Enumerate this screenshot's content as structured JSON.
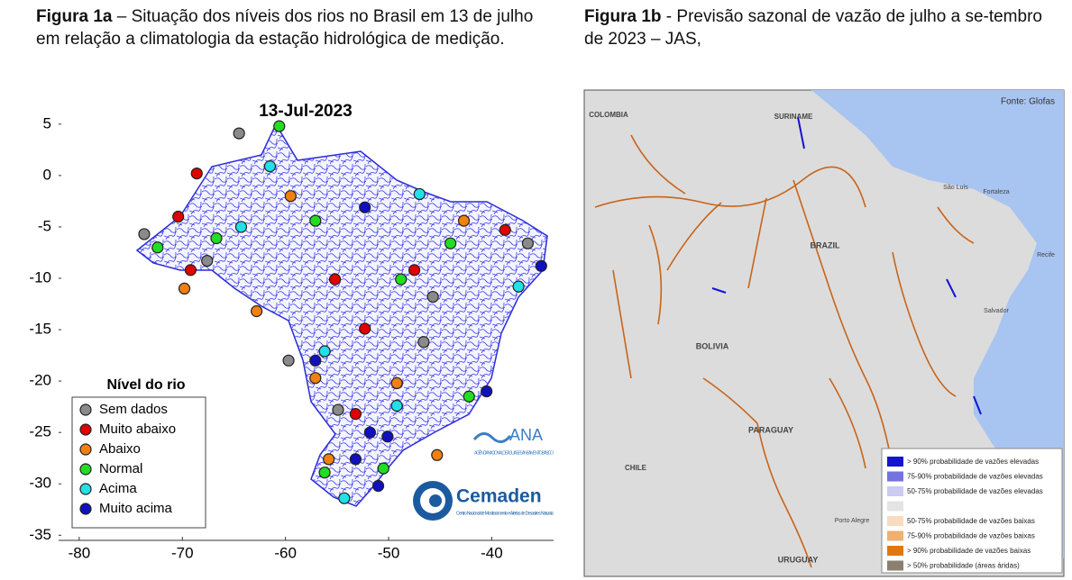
{
  "captions": [
    {
      "label": "Figura 1a",
      "text": " – Situação dos níveis dos rios no Brasil em 13 de julho em relação a climatologia da estação hidrológica de medição."
    },
    {
      "label": "Figura 1b",
      "text": " -  Previsão sazonal de vazão de julho a se-tembro de 2023 – JAS,"
    }
  ],
  "chart_data": {
    "type": "scatter",
    "title": "13-Jul-2023",
    "legend_title": "Nível do rio",
    "xlim": [
      -82,
      -34
    ],
    "ylim": [
      -35.5,
      7
    ],
    "xticks": [
      -80,
      -70,
      -60,
      -50,
      -40
    ],
    "yticks": [
      5,
      0,
      -5,
      -10,
      -15,
      -20,
      -25,
      -30,
      -35
    ],
    "series": [
      {
        "name": "Sem dados",
        "color": "#8a8a8a",
        "x": [
          -64.5,
          -73.7,
          -67.6,
          -59.7,
          -46.6,
          -36.5,
          -45.7,
          -54.9
        ],
        "y": [
          4.1,
          -5.7,
          -8.3,
          -18,
          -16.2,
          -6.6,
          -11.8,
          -22.8
        ]
      },
      {
        "name": "Muito abaixo",
        "color": "#e00000",
        "x": [
          -68.6,
          -70.4,
          -69.2,
          -55.2,
          -52.3,
          -53.2,
          -38.7,
          -47.5
        ],
        "y": [
          0.2,
          -4,
          -9.2,
          -10.1,
          -14.9,
          -23.2,
          -5.3,
          -9.2
        ]
      },
      {
        "name": "Abaixo",
        "color": "#f08010",
        "x": [
          -69.8,
          -59.5,
          -62.8,
          -49.2,
          -42.7,
          -45.3,
          -57.1,
          -55.8
        ],
        "y": [
          -11,
          -2,
          -13.2,
          -20.2,
          -4.4,
          -27.2,
          -19.7,
          -27.6
        ]
      },
      {
        "name": "Normal",
        "color": "#22dd22",
        "x": [
          -60.6,
          -66.7,
          -57.1,
          -48.8,
          -44,
          -50.5,
          -56.2,
          -42.2,
          -72.4
        ],
        "y": [
          4.8,
          -6.1,
          -4.4,
          -10.1,
          -6.6,
          -28.5,
          -28.9,
          -21.5,
          -7
        ]
      },
      {
        "name": "Acima",
        "color": "#22e0e8",
        "x": [
          -61.5,
          -64.3,
          -47,
          -37.4,
          -49.2,
          -54.3,
          -56.2
        ],
        "y": [
          0.9,
          -5,
          -1.8,
          -10.8,
          -22.4,
          -31.4,
          -17.1
        ]
      },
      {
        "name": "Muito acima",
        "color": "#1010c0",
        "x": [
          -52.3,
          -57.1,
          -51.8,
          -53.2,
          -50.1,
          -51,
          -40.5,
          -35.2
        ],
        "y": [
          -3.1,
          -18,
          -25,
          -27.6,
          -25.4,
          -30.2,
          -21,
          -8.8
        ]
      }
    ]
  },
  "logos": {
    "ana": "ANA",
    "ana_sub": "AGÊNCIA NACIONAL DE ÁGUAS E SANEAMENTO BÁSICO",
    "cemaden": "Cemaden",
    "cemaden_sub": "Centro Nacional de Monitoramento e Alertas de Desastres Naturais"
  },
  "figure_1b": {
    "source": "Fonte: Glofas",
    "places": [
      "COLOMBIA",
      "SURINAME",
      "BRAZIL",
      "BOLIVIA",
      "PARAGUAY",
      "CHILE",
      "URUGUAY",
      "Fortaleza",
      "Recife",
      "Salvador",
      "Porto Alegre",
      "São Luís"
    ],
    "legend": [
      {
        "label": "> 90% probabilidade de vazões elevadas",
        "color": "#1414d0"
      },
      {
        "label": "75-90% probabilidade de vazões elevadas",
        "color": "#7272e0"
      },
      {
        "label": "50-75% probabilidade de vazões elevadas",
        "color": "#cacaf2"
      },
      {
        "label": "50-75% probabilidade de vazões baixas",
        "color": "#f8dcc0"
      },
      {
        "label": "75-90% probabilidade de vazões baixas",
        "color": "#f0b070"
      },
      {
        "label": "> 90% probabilidade de vazões baixas",
        "color": "#e07810"
      },
      {
        "label": "> 50% probabilidade (áreas áridas)",
        "color": "#8a8070"
      }
    ]
  }
}
